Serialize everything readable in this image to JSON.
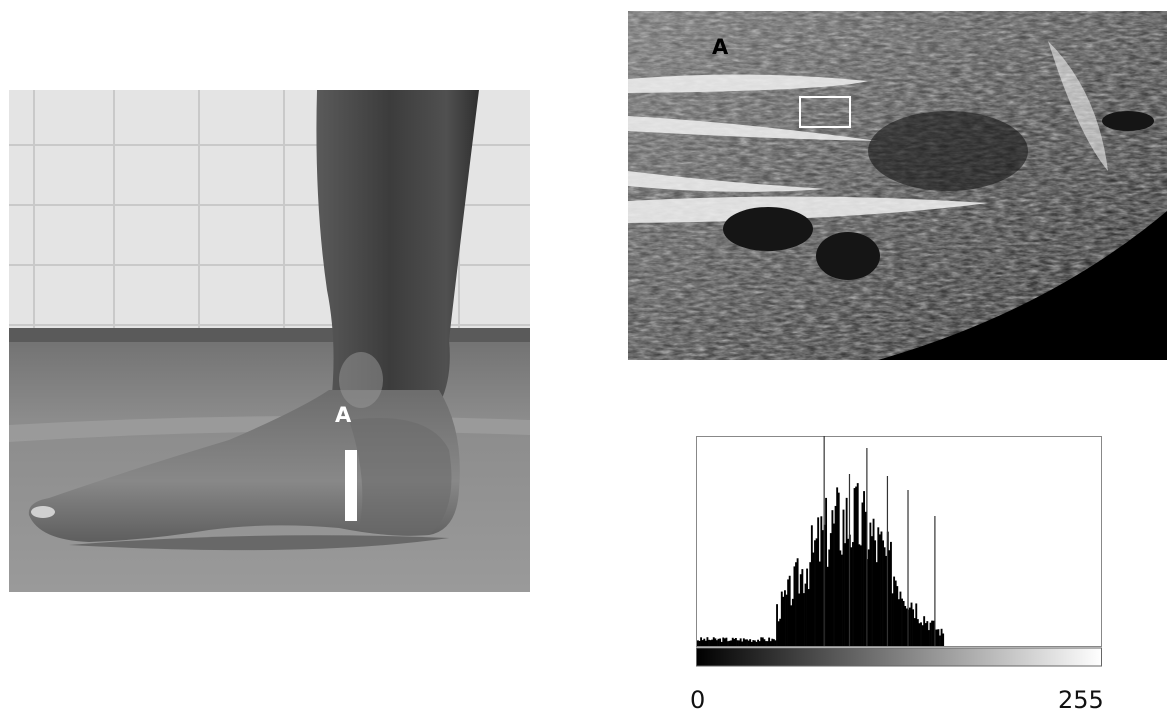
{
  "foot_photo": {
    "marker_label": "A",
    "colors": {
      "tile_wall": "#e6e6e6",
      "floor": "#8a8a8a",
      "skin": "#7f7f7f",
      "marker": "#ffffff"
    }
  },
  "ultrasound": {
    "marker_label": "A",
    "roi_box_color": "#ffffff"
  },
  "histogram": {
    "axis_min_label": "0",
    "axis_max_label": "255",
    "colors": {
      "bars": "#000000",
      "frame": "#888888"
    }
  }
}
